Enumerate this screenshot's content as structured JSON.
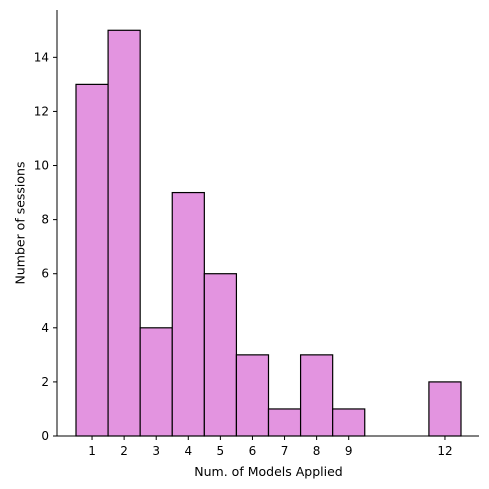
{
  "chart_data": {
    "type": "bar",
    "title": "",
    "xlabel": "Num. of Models Applied",
    "ylabel": "Number of sessions",
    "xlim": [
      0.5,
      12.5
    ],
    "ylim": [
      0,
      15.75
    ],
    "x_ticks": [
      1,
      2,
      3,
      4,
      5,
      6,
      7,
      8,
      9,
      12
    ],
    "y_ticks": [
      0,
      2,
      4,
      6,
      8,
      10,
      12,
      14
    ],
    "bins": [
      {
        "start": 0.5,
        "end": 1.5,
        "value": 13
      },
      {
        "start": 1.5,
        "end": 2.5,
        "value": 15
      },
      {
        "start": 2.5,
        "end": 3.5,
        "value": 4
      },
      {
        "start": 3.5,
        "end": 4.5,
        "value": 9
      },
      {
        "start": 4.5,
        "end": 5.5,
        "value": 6
      },
      {
        "start": 5.5,
        "end": 6.5,
        "value": 3
      },
      {
        "start": 6.5,
        "end": 7.5,
        "value": 1
      },
      {
        "start": 7.5,
        "end": 8.5,
        "value": 3
      },
      {
        "start": 8.5,
        "end": 9.5,
        "value": 1
      },
      {
        "start": 9.5,
        "end": 10.5,
        "value": 0
      },
      {
        "start": 10.5,
        "end": 11.5,
        "value": 0
      },
      {
        "start": 11.5,
        "end": 12.5,
        "value": 2
      }
    ],
    "bar_color": "#e394e0",
    "edge_color": "#000000",
    "grid": false,
    "spines": [
      "left",
      "bottom"
    ]
  }
}
